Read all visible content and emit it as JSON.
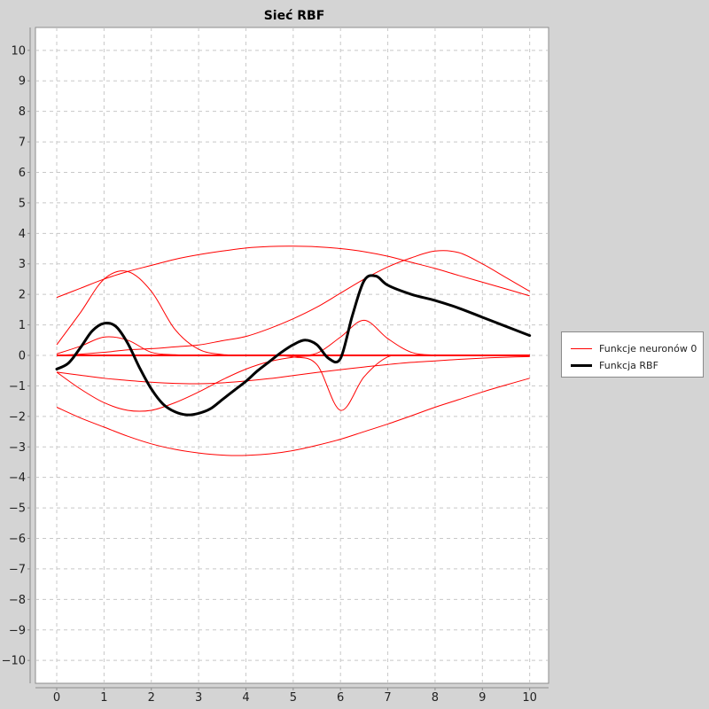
{
  "chart_data": {
    "type": "line",
    "title": "Sieć RBF",
    "xlabel": "",
    "ylabel": "",
    "xlim": [
      -0.45,
      10.4
    ],
    "ylim": [
      -10.75,
      10.75
    ],
    "x_ticks": [
      0,
      1,
      2,
      3,
      4,
      5,
      6,
      7,
      8,
      9,
      10
    ],
    "y_ticks": [
      10,
      9,
      8,
      7,
      6,
      5,
      4,
      3,
      2,
      1,
      0,
      -1,
      -2,
      -3,
      -4,
      -5,
      -6,
      -7,
      -8,
      -9,
      -10
    ],
    "grid": true,
    "legend_position": "right",
    "legend": [
      {
        "label": "Funkcje neuronów 0",
        "color": "#ff0000"
      },
      {
        "label": "Funkcja RBF",
        "color": "#000000"
      }
    ],
    "series": [
      {
        "name": "Funkcje neuronów 0",
        "color": "#ff0000",
        "role": "neurons",
        "x": [
          0,
          0.5,
          1,
          1.5,
          2,
          2.5,
          3,
          3.5,
          4,
          4.5,
          5,
          5.5,
          6,
          6.5,
          7,
          7.5,
          8,
          8.5,
          9,
          9.5,
          10
        ],
        "curves": [
          [
            1.9,
            2.2,
            2.5,
            2.75,
            2.95,
            3.15,
            3.3,
            3.42,
            3.52,
            3.57,
            3.58,
            3.56,
            3.5,
            3.4,
            3.25,
            3.05,
            2.85,
            2.62,
            2.4,
            2.18,
            1.95
          ],
          [
            0.35,
            1.4,
            2.5,
            2.75,
            2.1,
            0.85,
            0.2,
            0.03,
            0,
            0,
            0,
            0,
            0,
            0,
            0,
            0,
            0,
            0,
            0,
            0,
            0
          ],
          [
            0,
            0.04,
            0.1,
            0.18,
            0.22,
            0.28,
            0.34,
            0.48,
            0.62,
            0.88,
            1.2,
            1.58,
            2.04,
            2.5,
            2.9,
            3.2,
            3.42,
            3.37,
            3.0,
            2.55,
            2.1
          ],
          [
            0.05,
            0.3,
            0.6,
            0.5,
            0.1,
            0.02,
            0,
            0,
            0,
            0,
            0,
            0,
            0,
            0,
            0,
            0,
            0,
            0,
            0,
            0,
            0
          ],
          [
            0,
            0,
            0,
            0,
            0,
            0,
            0,
            0,
            0,
            0,
            0,
            0.07,
            0.6,
            1.15,
            0.55,
            0.1,
            0.01,
            0,
            0,
            0,
            0
          ],
          [
            0,
            0,
            0,
            0,
            0,
            0,
            0,
            0,
            0,
            0,
            0,
            0,
            0,
            0,
            0,
            0,
            0,
            0,
            0,
            0,
            0
          ],
          [
            0,
            0,
            0,
            0,
            0,
            0,
            0,
            0,
            0,
            0,
            -0.05,
            -0.3,
            -1.8,
            -0.7,
            -0.05,
            0,
            0,
            0,
            0,
            0,
            0
          ],
          [
            -0.55,
            -0.65,
            -0.75,
            -0.82,
            -0.88,
            -0.92,
            -0.93,
            -0.9,
            -0.84,
            -0.76,
            -0.66,
            -0.56,
            -0.47,
            -0.38,
            -0.3,
            -0.23,
            -0.18,
            -0.13,
            -0.09,
            -0.06,
            -0.04
          ],
          [
            -0.55,
            -1.1,
            -1.55,
            -1.8,
            -1.8,
            -1.55,
            -1.2,
            -0.8,
            -0.45,
            -0.2,
            -0.06,
            -0.01,
            0,
            0,
            0,
            0,
            0,
            0,
            0,
            0,
            0
          ],
          [
            -1.7,
            -2.05,
            -2.35,
            -2.65,
            -2.9,
            -3.08,
            -3.2,
            -3.27,
            -3.28,
            -3.23,
            -3.12,
            -2.95,
            -2.75,
            -2.5,
            -2.25,
            -1.98,
            -1.7,
            -1.45,
            -1.2,
            -0.97,
            -0.75
          ]
        ]
      },
      {
        "name": "Funkcja RBF",
        "color": "#000000",
        "role": "rbf",
        "x": [
          0,
          0.25,
          0.5,
          0.75,
          1,
          1.25,
          1.5,
          1.75,
          2,
          2.25,
          2.5,
          2.75,
          3,
          3.25,
          3.5,
          3.75,
          4,
          4.25,
          4.5,
          4.75,
          5,
          5.25,
          5.5,
          5.75,
          6,
          6.25,
          6.5,
          6.75,
          7,
          7.5,
          8,
          8.5,
          9,
          9.5,
          10
        ],
        "values": [
          -0.45,
          -0.25,
          0.25,
          0.8,
          1.05,
          0.95,
          0.4,
          -0.4,
          -1.1,
          -1.6,
          -1.85,
          -1.95,
          -1.9,
          -1.75,
          -1.45,
          -1.15,
          -0.85,
          -0.5,
          -0.2,
          0.1,
          0.35,
          0.5,
          0.35,
          -0.1,
          -0.1,
          1.3,
          2.45,
          2.6,
          2.3,
          2.0,
          1.8,
          1.55,
          1.25,
          0.95,
          0.65
        ]
      }
    ]
  }
}
